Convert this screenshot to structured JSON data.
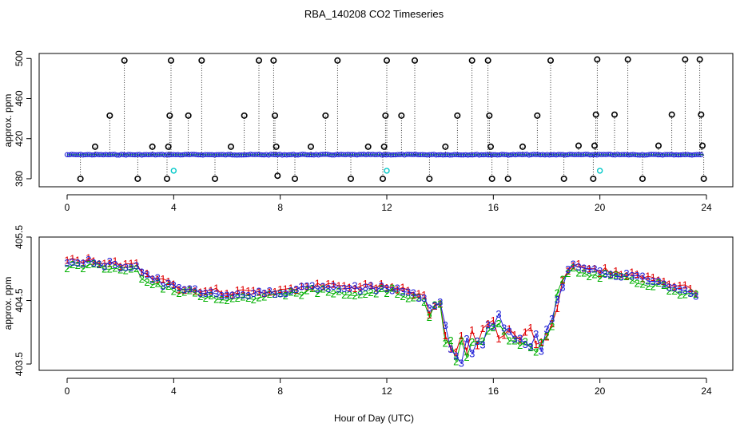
{
  "title": "RBA_140208  CO2 Timeseries",
  "xlabel": "Hour of Day (UTC)",
  "colors": {
    "raw": "#1f1fd6",
    "baseline": "#00c000",
    "flag": "#000000",
    "cyan": "#00c8c8",
    "red": "#e00000",
    "green": "#00b000",
    "blue": "#1f1fd6"
  },
  "chart_data": [
    {
      "type": "scatter",
      "ylabel": "approx. ppm",
      "xlim": [
        0,
        24
      ],
      "ylim": [
        372,
        505
      ],
      "xticks": [
        0,
        4,
        8,
        12,
        16,
        20,
        24
      ],
      "yticks": [
        380,
        420,
        460,
        500
      ],
      "baseline_level": 404,
      "marker_series": {
        "name": "flagged samples",
        "x": [
          0.5,
          1.05,
          1.6,
          2.15,
          2.65,
          3.2,
          3.75,
          3.8,
          3.85,
          3.9,
          4.55,
          5.05,
          5.55,
          6.15,
          6.65,
          7.2,
          7.75,
          7.8,
          7.85,
          7.9,
          8.55,
          9.15,
          9.7,
          10.15,
          10.65,
          11.3,
          11.85,
          11.9,
          11.95,
          12.0,
          12.55,
          13.05,
          13.6,
          14.2,
          14.65,
          15.2,
          15.8,
          15.85,
          15.9,
          15.95,
          16.55,
          17.1,
          17.65,
          18.15,
          18.65,
          19.2,
          19.75,
          19.8,
          19.85,
          19.9,
          20.55,
          21.05,
          21.6,
          22.2,
          22.7,
          23.2,
          23.75,
          23.8,
          23.85,
          23.9
        ],
        "y": [
          380,
          412,
          443,
          498,
          380,
          412,
          380,
          412,
          443,
          498,
          443,
          498,
          380,
          412,
          443,
          498,
          498,
          443,
          412,
          383,
          380,
          412,
          443,
          498,
          380,
          412,
          380,
          412,
          443,
          498,
          443,
          498,
          380,
          412,
          443,
          498,
          498,
          443,
          412,
          380,
          380,
          412,
          443,
          498,
          380,
          413,
          380,
          413,
          444,
          499,
          444,
          499,
          380,
          413,
          444,
          499,
          499,
          444,
          413,
          380
        ]
      },
      "cyan_points": {
        "x": [
          4.0,
          12.0,
          20.0
        ],
        "y": [
          388,
          388,
          388
        ]
      }
    },
    {
      "type": "line",
      "ylabel": "approx. ppm",
      "xlim": [
        0,
        24
      ],
      "ylim": [
        403.4,
        405.5
      ],
      "xticks": [
        0,
        4,
        8,
        12,
        16,
        20,
        24
      ],
      "yticks": [
        403.5,
        404.5,
        405.5
      ],
      "ytick_labels": [
        "403.5",
        "404.5",
        "405.5"
      ],
      "series_marker_labels": [
        "1",
        "2",
        "3"
      ],
      "profile": {
        "x": [
          0,
          1,
          2,
          2.6,
          2.8,
          3.2,
          4,
          5,
          6,
          7,
          8,
          9,
          10,
          11,
          12,
          12.5,
          13,
          13.5,
          14,
          14.3,
          14.5,
          15,
          15.5,
          16,
          16.5,
          17,
          17.5,
          18,
          18.3,
          18.6,
          19,
          19.5,
          20,
          21,
          22,
          23,
          23.7
        ],
        "y": [
          405.1,
          405.1,
          405.05,
          405.05,
          404.95,
          404.85,
          404.7,
          404.65,
          404.6,
          404.6,
          404.65,
          404.7,
          404.7,
          404.68,
          404.72,
          404.68,
          404.6,
          404.5,
          404.3,
          403.9,
          403.7,
          403.75,
          403.85,
          404.05,
          404.1,
          404.0,
          403.95,
          403.85,
          404.3,
          404.9,
          405.05,
          404.95,
          404.95,
          404.9,
          404.82,
          404.7,
          404.6
        ]
      }
    }
  ]
}
